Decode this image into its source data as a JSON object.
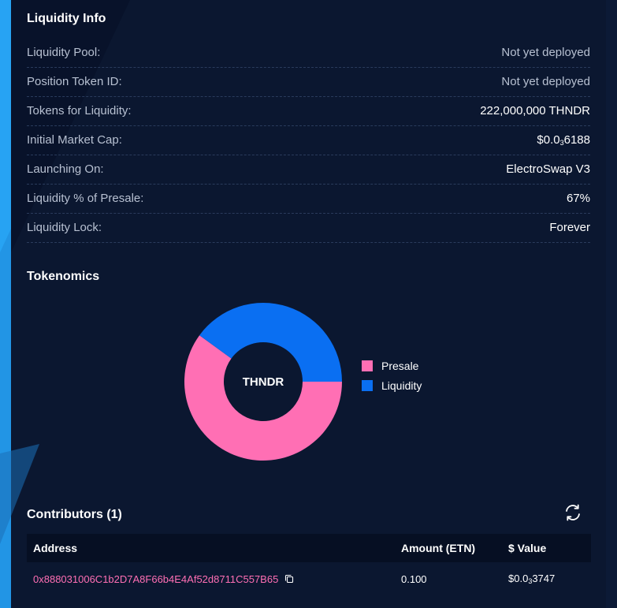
{
  "liquidity_info": {
    "title": "Liquidity Info",
    "rows": [
      {
        "label": "Liquidity Pool:",
        "value": "Not yet deployed"
      },
      {
        "label": "Position Token ID:",
        "value": "Not yet deployed"
      },
      {
        "label": "Tokens for Liquidity:",
        "value": "222,000,000 THNDR"
      },
      {
        "label": "Initial Market Cap:",
        "value_prefix": "$0.0",
        "value_sub": "3",
        "value_suffix": "6188"
      },
      {
        "label": "Launching On:",
        "value": "ElectroSwap V3"
      },
      {
        "label": "Liquidity % of Presale:",
        "value": "67%"
      },
      {
        "label": "Liquidity Lock:",
        "value": "Forever"
      }
    ]
  },
  "tokenomics": {
    "title": "Tokenomics",
    "center_label": "THNDR"
  },
  "chart_data": {
    "type": "pie",
    "categories": [
      "Presale",
      "Liquidity"
    ],
    "values": [
      60,
      40
    ],
    "colors": [
      "#ff6fb4",
      "#0a6ff2"
    ],
    "legend": "right",
    "donut": true
  },
  "contributors": {
    "title": "Contributors (1)",
    "refresh_icon": "refresh-icon",
    "columns": [
      "Address",
      "Amount (ETN)",
      "$ Value"
    ],
    "rows": [
      {
        "address": "0x888031006C1b2D7A8F66b4E4Af52d8711C557B65",
        "amount": "0.100",
        "value_prefix": "$0.0",
        "value_sub": "3",
        "value_suffix": "3747"
      }
    ]
  },
  "colors": {
    "background": "#0b1730",
    "accent_blue": "#1ea0f0",
    "pink": "#ff6fb4",
    "blue": "#0a6ff2"
  }
}
